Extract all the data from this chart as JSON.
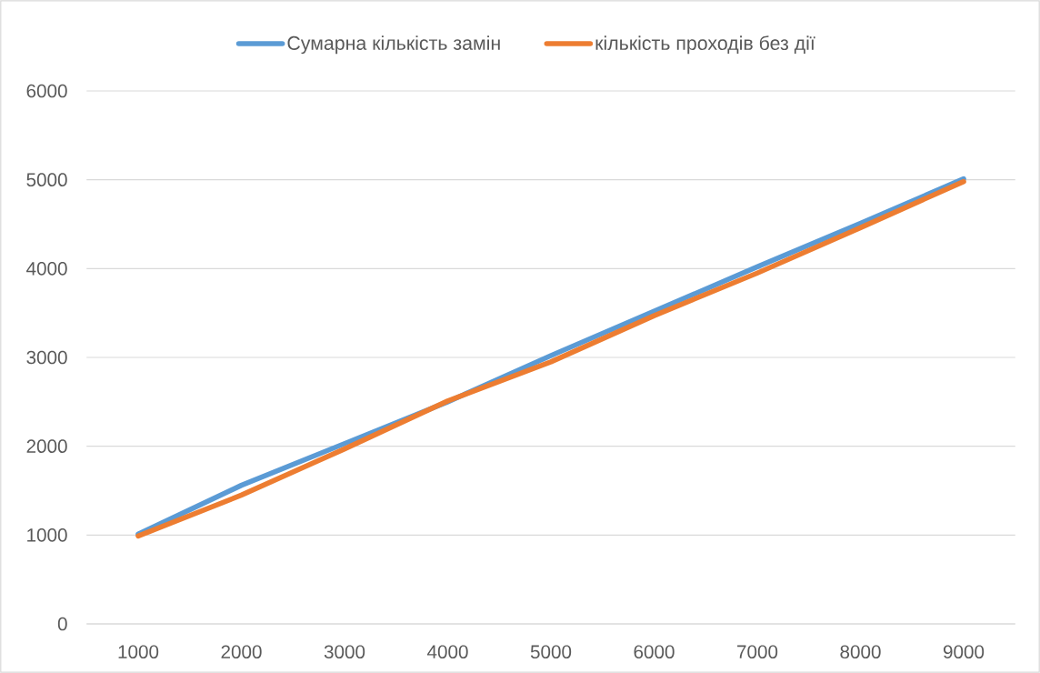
{
  "chart_data": {
    "type": "line",
    "categories": [
      "1000",
      "2000",
      "3000",
      "4000",
      "5000",
      "6000",
      "7000",
      "8000",
      "9000"
    ],
    "series": [
      {
        "name": "Сумарна кількість замін",
        "color": "#5b9bd5",
        "values": [
          1010,
          1560,
          2030,
          2500,
          3020,
          3520,
          4020,
          4510,
          5010
        ]
      },
      {
        "name": "кількість проходів без дії",
        "color": "#ed7d31",
        "values": [
          990,
          1450,
          1970,
          2510,
          2950,
          3470,
          3950,
          4460,
          4980
        ]
      }
    ],
    "ylim": [
      0,
      6000
    ],
    "yticks": [
      0,
      1000,
      2000,
      3000,
      4000,
      5000,
      6000
    ],
    "grid": "y",
    "legend": "top",
    "marker": "none",
    "line_style": "solid"
  }
}
